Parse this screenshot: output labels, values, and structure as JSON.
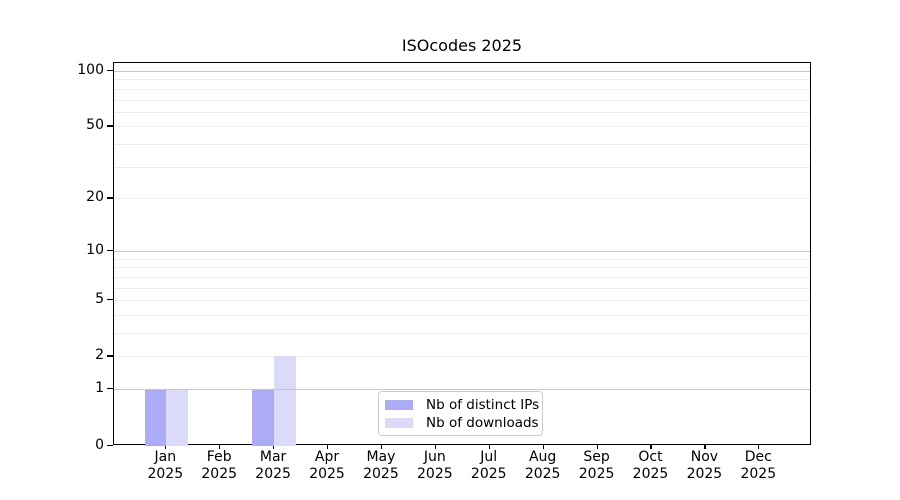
{
  "chart_data": {
    "type": "bar",
    "title": "ISOcodes 2025",
    "categories": [
      "Jan 2025",
      "Feb 2025",
      "Mar 2025",
      "Apr 2025",
      "May 2025",
      "Jun 2025",
      "Jul 2025",
      "Aug 2025",
      "Sep 2025",
      "Oct 2025",
      "Nov 2025",
      "Dec 2025"
    ],
    "series": [
      {
        "name": "Nb of distinct IPs",
        "color": "#acacf4",
        "values": [
          1,
          0,
          1,
          0,
          0,
          0,
          0,
          0,
          0,
          0,
          0,
          0
        ]
      },
      {
        "name": "Nb of downloads",
        "color": "#dbdbf9",
        "values": [
          1,
          0,
          2,
          0,
          0,
          0,
          0,
          0,
          0,
          0,
          0,
          0
        ]
      }
    ],
    "xlabel": "",
    "ylabel": "",
    "y_axis": {
      "scale": "log10(1+v)",
      "lim": [
        0,
        110
      ],
      "tick_values": [
        0,
        1,
        2,
        5,
        10,
        20,
        50,
        100
      ],
      "tick_labels": [
        "0",
        "1",
        "2",
        "5",
        "10",
        "20",
        "50",
        "100"
      ],
      "major_gridlines": [
        1,
        10,
        100
      ],
      "minor_gridlines": [
        2,
        3,
        4,
        5,
        6,
        7,
        8,
        9,
        20,
        30,
        40,
        50,
        60,
        70,
        80,
        90
      ]
    },
    "grid": "both",
    "legend_position": "inside-lower-center",
    "colors": {
      "major_grid": "#c6c6c6",
      "minor_grid": "#ededed",
      "axis": "#000000",
      "legend_border": "#cccccc"
    }
  }
}
